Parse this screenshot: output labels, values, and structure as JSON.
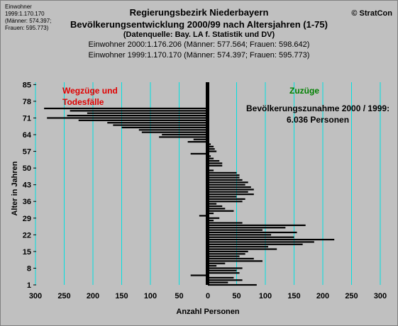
{
  "header": {
    "title_line1": "Regierungsbezirk Niederbayern",
    "title_line2": "Bevölkerungsentwicklung 2000/99 nach Altersjahren (1-75)",
    "title_line3": "(Datenquelle: Bay. LA f. Statistik und DV)",
    "title_line4": "Einwohner 2000:1.176.206 (Männer: 577.564; Frauen: 598.642)",
    "title_line5": "Einwohner 1999:1.170.170 (Männer: 574.397; Frauen: 595.773)",
    "copyright": "© StratCon",
    "corner_note": "Einwohner 1999:1.170.170 (Männer: 574.397; Frauen: 595.773)"
  },
  "colors": {
    "background": "#c0c0c0",
    "gridline": "#00e0e0",
    "bars": "#000000",
    "left_label": "#e00000",
    "right_label": "#008000"
  },
  "chart_data": {
    "type": "bar",
    "orientation": "horizontal",
    "xlabel": "Anzahl Personen",
    "ylabel": "Alter in Jahren",
    "xlim": [
      -300,
      300
    ],
    "ylim": [
      1,
      86
    ],
    "x_ticks": [
      300,
      250,
      200,
      150,
      100,
      50,
      0,
      50,
      100,
      150,
      200,
      250,
      300
    ],
    "y_ticks": [
      1,
      8,
      15,
      22,
      29,
      36,
      43,
      50,
      57,
      64,
      71,
      78,
      85
    ],
    "grid": "vertical",
    "annotations": {
      "left_label_line1": "Wegzüge und",
      "left_label_line2": "Todesfälle",
      "right_label": "Zuzüge",
      "summary_line1": "Bevölkerungszunahme 2000 / 1999:",
      "summary_line2": "6.036 Personen"
    },
    "ages": [
      1,
      2,
      3,
      4,
      5,
      6,
      7,
      8,
      9,
      10,
      11,
      12,
      13,
      14,
      15,
      16,
      17,
      18,
      19,
      20,
      21,
      22,
      23,
      24,
      25,
      26,
      27,
      28,
      29,
      30,
      31,
      32,
      33,
      34,
      35,
      36,
      37,
      38,
      39,
      40,
      41,
      42,
      43,
      44,
      45,
      46,
      47,
      48,
      49,
      50,
      51,
      52,
      53,
      54,
      55,
      56,
      57,
      58,
      59,
      60,
      61,
      62,
      63,
      64,
      65,
      66,
      67,
      68,
      69,
      70,
      71,
      72,
      73,
      74,
      75
    ],
    "values": [
      85,
      35,
      60,
      45,
      -30,
      55,
      50,
      60,
      15,
      30,
      95,
      80,
      55,
      65,
      70,
      120,
      105,
      165,
      185,
      220,
      150,
      110,
      155,
      95,
      135,
      170,
      60,
      10,
      20,
      -15,
      10,
      45,
      30,
      25,
      15,
      60,
      65,
      50,
      80,
      70,
      80,
      75,
      65,
      70,
      60,
      55,
      55,
      50,
      10,
      0,
      25,
      25,
      20,
      10,
      5,
      -30,
      15,
      12,
      10,
      5,
      -35,
      -25,
      -85,
      -80,
      -115,
      -120,
      -150,
      -165,
      -175,
      -225,
      -280,
      -245,
      -210,
      -240,
      -285
    ]
  }
}
